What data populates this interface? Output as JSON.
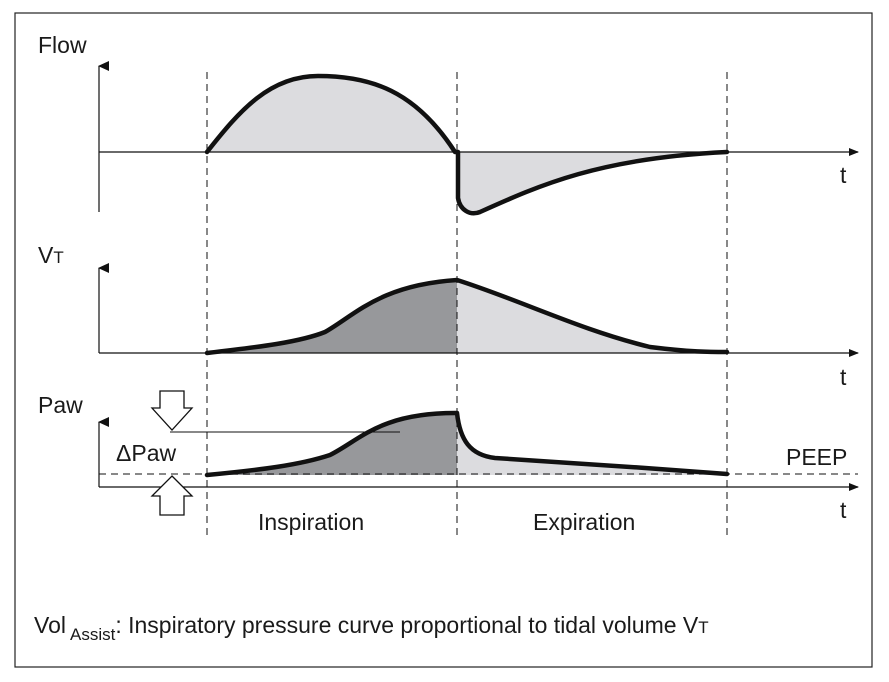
{
  "labels": {
    "flow": "Flow",
    "vt_main": "V",
    "vt_sub": "T",
    "paw": "Paw",
    "delta_paw": "ΔPaw",
    "peep": "PEEP",
    "t1": "t",
    "t2": "t",
    "t3": "t",
    "inspiration": "Inspiration",
    "expiration": "Expiration"
  },
  "caption": {
    "prefix": "Vol",
    "subscript": "Assist",
    "text": ":  Inspiratory pressure curve proportional to tidal volume V",
    "tail": "T"
  },
  "colors": {
    "curve": "#111111",
    "light_fill": "#dcdcdf",
    "dark_fill": "#97989b",
    "axis": "#111111"
  }
}
